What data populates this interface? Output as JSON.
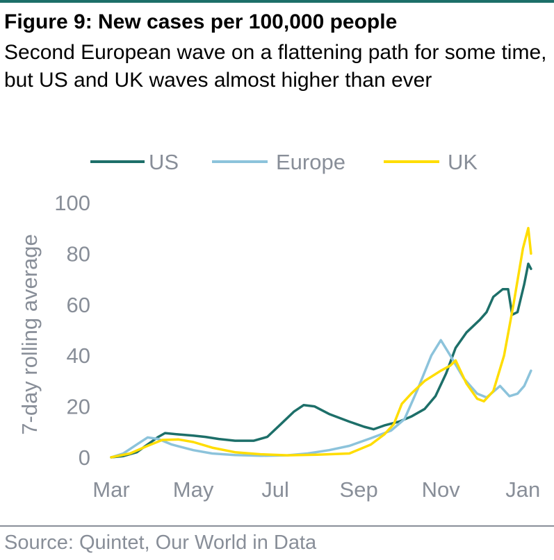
{
  "header": {
    "title": "Figure 9: New cases per 100,000 people",
    "subtitle": "Second European wave on a flattening path for some time, but US and UK waves almost higher than ever"
  },
  "footer": {
    "source": "Source: Quintet, Our World in Data"
  },
  "colors": {
    "accent_rule": "#1d6f69",
    "axis_text": "#888e98"
  },
  "chart_data": {
    "type": "line",
    "title": "Figure 9: New cases per 100,000 people",
    "subtitle": "Second European wave on a flattening path for some time, but US and UK waves almost higher than ever",
    "xlabel": "",
    "ylabel": "7-day rolling average",
    "ylim": [
      0,
      100
    ],
    "yticks": [
      0,
      20,
      40,
      60,
      80,
      100
    ],
    "xtick_labels": [
      "Mar",
      "May",
      "Jul",
      "Sep",
      "Nov",
      "Jan"
    ],
    "xtick_dates": [
      "2020-03-01",
      "2020-05-01",
      "2020-07-01",
      "2020-09-01",
      "2020-11-01",
      "2021-01-01"
    ],
    "xlim": [
      "2020-03-01",
      "2021-01-05"
    ],
    "grid": false,
    "legend_position": "top",
    "series": [
      {
        "name": "US",
        "color": "#1d6f69",
        "points": [
          [
            "2020-03-01",
            0
          ],
          [
            "2020-03-10",
            0.5
          ],
          [
            "2020-03-20",
            2
          ],
          [
            "2020-03-28",
            5
          ],
          [
            "2020-04-05",
            8
          ],
          [
            "2020-04-10",
            9.5
          ],
          [
            "2020-04-20",
            9
          ],
          [
            "2020-05-01",
            8.5
          ],
          [
            "2020-05-10",
            8
          ],
          [
            "2020-05-20",
            7.2
          ],
          [
            "2020-06-01",
            6.5
          ],
          [
            "2020-06-15",
            6.5
          ],
          [
            "2020-06-25",
            8
          ],
          [
            "2020-07-05",
            13
          ],
          [
            "2020-07-15",
            18
          ],
          [
            "2020-07-22",
            20.5
          ],
          [
            "2020-07-30",
            20
          ],
          [
            "2020-08-10",
            17
          ],
          [
            "2020-08-25",
            14
          ],
          [
            "2020-09-05",
            12
          ],
          [
            "2020-09-12",
            11
          ],
          [
            "2020-09-20",
            12.5
          ],
          [
            "2020-10-01",
            14
          ],
          [
            "2020-10-10",
            16
          ],
          [
            "2020-10-20",
            19
          ],
          [
            "2020-10-28",
            24
          ],
          [
            "2020-11-05",
            33
          ],
          [
            "2020-11-12",
            43
          ],
          [
            "2020-11-20",
            49
          ],
          [
            "2020-11-30",
            54
          ],
          [
            "2020-12-05",
            57
          ],
          [
            "2020-12-10",
            63
          ],
          [
            "2020-12-17",
            66
          ],
          [
            "2020-12-21",
            66
          ],
          [
            "2020-12-24",
            56
          ],
          [
            "2020-12-28",
            57
          ],
          [
            "2021-01-02",
            68
          ],
          [
            "2021-01-05",
            76
          ],
          [
            "2021-01-07",
            74
          ]
        ]
      },
      {
        "name": "Europe",
        "color": "#8cc3db",
        "points": [
          [
            "2020-03-01",
            0
          ],
          [
            "2020-03-10",
            1.5
          ],
          [
            "2020-03-20",
            5
          ],
          [
            "2020-03-28",
            7.8
          ],
          [
            "2020-04-05",
            7.2
          ],
          [
            "2020-04-15",
            5
          ],
          [
            "2020-05-01",
            2.8
          ],
          [
            "2020-05-15",
            1.5
          ],
          [
            "2020-06-01",
            0.9
          ],
          [
            "2020-06-20",
            0.6
          ],
          [
            "2020-07-10",
            0.8
          ],
          [
            "2020-07-25",
            1.5
          ],
          [
            "2020-08-10",
            2.8
          ],
          [
            "2020-08-25",
            4.5
          ],
          [
            "2020-09-10",
            7.5
          ],
          [
            "2020-09-25",
            10.5
          ],
          [
            "2020-10-05",
            15
          ],
          [
            "2020-10-15",
            27
          ],
          [
            "2020-10-25",
            40
          ],
          [
            "2020-11-01",
            46
          ],
          [
            "2020-11-08",
            40
          ],
          [
            "2020-11-18",
            31
          ],
          [
            "2020-11-28",
            25
          ],
          [
            "2020-12-05",
            23.5
          ],
          [
            "2020-12-15",
            28
          ],
          [
            "2020-12-22",
            24
          ],
          [
            "2020-12-28",
            25
          ],
          [
            "2021-01-02",
            28
          ],
          [
            "2021-01-07",
            34
          ]
        ]
      },
      {
        "name": "UK",
        "color": "#ffdd00",
        "points": [
          [
            "2020-03-01",
            0
          ],
          [
            "2020-03-15",
            1.5
          ],
          [
            "2020-03-28",
            4.5
          ],
          [
            "2020-04-08",
            6.8
          ],
          [
            "2020-04-20",
            7
          ],
          [
            "2020-05-01",
            6
          ],
          [
            "2020-05-15",
            3.8
          ],
          [
            "2020-06-01",
            2
          ],
          [
            "2020-06-20",
            1.2
          ],
          [
            "2020-07-10",
            0.8
          ],
          [
            "2020-08-01",
            1
          ],
          [
            "2020-08-25",
            1.5
          ],
          [
            "2020-09-10",
            5
          ],
          [
            "2020-09-20",
            9
          ],
          [
            "2020-09-27",
            13
          ],
          [
            "2020-10-03",
            21
          ],
          [
            "2020-10-10",
            25
          ],
          [
            "2020-10-20",
            30
          ],
          [
            "2020-11-01",
            34
          ],
          [
            "2020-11-08",
            36
          ],
          [
            "2020-11-12",
            38
          ],
          [
            "2020-11-20",
            29
          ],
          [
            "2020-11-28",
            23
          ],
          [
            "2020-12-03",
            22
          ],
          [
            "2020-12-10",
            26
          ],
          [
            "2020-12-18",
            40
          ],
          [
            "2020-12-25",
            60
          ],
          [
            "2021-01-01",
            82
          ],
          [
            "2021-01-05",
            90
          ],
          [
            "2021-01-07",
            80
          ]
        ]
      }
    ]
  }
}
